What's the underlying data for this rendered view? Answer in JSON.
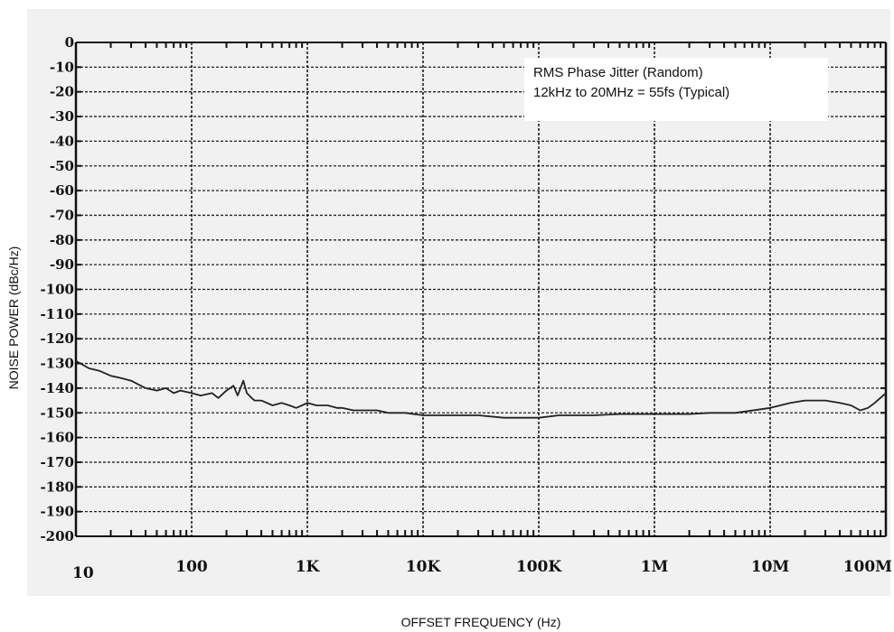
{
  "chart_data": {
    "type": "line",
    "title": "",
    "xlabel": "OFFSET FREQUENCY (Hz)",
    "ylabel": "NOISE POWER (dBc/Hz)",
    "xscale": "log",
    "xlim": [
      10,
      100000000
    ],
    "ylim": [
      -200,
      0
    ],
    "grid": true,
    "x_tick_values": [
      10,
      100,
      1000,
      10000,
      100000,
      1000000,
      10000000,
      100000000
    ],
    "x_tick_labels": [
      "10",
      "100",
      "1K",
      "10K",
      "100K",
      "1M",
      "10M",
      "100M"
    ],
    "y_ticks": [
      0,
      -10,
      -20,
      -30,
      -40,
      -50,
      -60,
      -70,
      -80,
      -90,
      -100,
      -110,
      -120,
      -130,
      -140,
      -150,
      -160,
      -170,
      -180,
      -190,
      -200
    ],
    "annotations": [
      "RMS Phase Jitter (Random)",
      "12kHz to 20MHz = 55fs (Typical)"
    ],
    "series": [
      {
        "color": "#222222",
        "x": [
          10,
          13,
          16,
          20,
          25,
          30,
          40,
          50,
          60,
          70,
          80,
          100,
          120,
          150,
          170,
          200,
          230,
          250,
          280,
          300,
          330,
          350,
          400,
          500,
          600,
          700,
          800,
          900,
          1000,
          1200,
          1500,
          1800,
          2000,
          2500,
          3000,
          4000,
          5000,
          7000,
          10000,
          15000,
          20000,
          30000,
          50000,
          70000,
          100000,
          150000,
          200000,
          300000,
          500000,
          700000,
          1000000,
          2000000,
          3000000,
          5000000,
          10000000,
          15000000,
          20000000,
          30000000,
          40000000,
          50000000,
          60000000,
          70000000,
          80000000,
          100000000
        ],
        "y": [
          -129,
          -132,
          -133,
          -135,
          -136,
          -137,
          -140,
          -141,
          -140,
          -142,
          -141,
          -142,
          -143,
          -142,
          -144,
          -141,
          -139,
          -143,
          -137,
          -142,
          -144,
          -145,
          -145,
          -147,
          -146,
          -147,
          -148,
          -147,
          -146,
          -147,
          -147,
          -148,
          -148,
          -149,
          -149,
          -149,
          -150,
          -150,
          -151,
          -151,
          -151,
          -151,
          -152,
          -152,
          -152,
          -151,
          -151,
          -151,
          -150.5,
          -150.5,
          -150.5,
          -150.5,
          -150,
          -150,
          -148,
          -146,
          -145,
          -145,
          -146,
          -147,
          -149,
          -148,
          -146,
          -142
        ]
      }
    ]
  }
}
